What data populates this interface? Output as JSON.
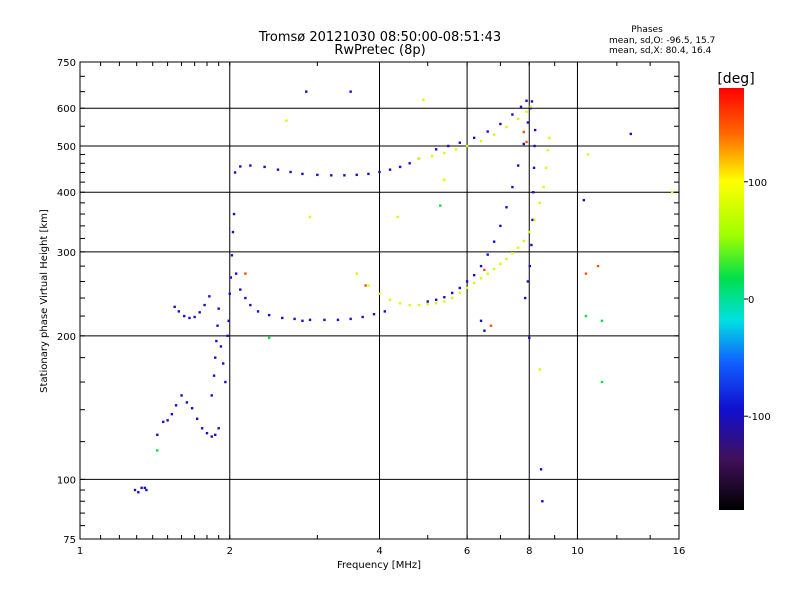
{
  "chart_data": {
    "type": "scatter",
    "title": "Tromsø 20121030 08:50:00-08:51:43",
    "subtitle": "RwPretec (8p)",
    "xlabel": "Frequency [MHz]",
    "ylabel": "Stationary phase Virtual Height [km]",
    "x_scale": "log",
    "y_scale": "log",
    "xlim": [
      1,
      16
    ],
    "ylim": [
      75,
      750
    ],
    "grid": true,
    "x_tick_labels": [
      {
        "value": 1,
        "label": "1"
      },
      {
        "value": 2,
        "label": "2"
      },
      {
        "value": 4,
        "label": "4"
      },
      {
        "value": 6,
        "label": "6"
      },
      {
        "value": 8,
        "label": "8"
      },
      {
        "value": 10,
        "label": "10"
      },
      {
        "value": 16,
        "label": "16"
      }
    ],
    "y_tick_labels": [
      {
        "value": 75,
        "label": "75"
      },
      {
        "value": 100,
        "label": "100"
      },
      {
        "value": 200,
        "label": "200"
      },
      {
        "value": 300,
        "label": "300"
      },
      {
        "value": 400,
        "label": "400"
      },
      {
        "value": 500,
        "label": "500"
      },
      {
        "value": 600,
        "label": "600"
      },
      {
        "value": 750,
        "label": "750"
      }
    ],
    "stats": {
      "heading": "Phases",
      "line_o": "mean, sd,O: -96.5, 15.7",
      "line_x": "mean, sd,X:  80.4, 16.4"
    },
    "colorbar": {
      "label": "[deg]",
      "range": [
        -180,
        180
      ],
      "ticks": [
        {
          "value": 100,
          "label": "100"
        },
        {
          "value": 0,
          "label": "0"
        },
        {
          "value": -100,
          "label": "-100"
        }
      ]
    },
    "series": [
      {
        "mode": "O",
        "phase_deg": -100,
        "points": [
          [
            1.29,
            95
          ],
          [
            1.31,
            94
          ],
          [
            1.33,
            96
          ],
          [
            1.35,
            96
          ],
          [
            1.36,
            95
          ],
          [
            1.43,
            124
          ],
          [
            1.47,
            132
          ],
          [
            1.5,
            133
          ],
          [
            1.53,
            137
          ],
          [
            1.56,
            143
          ],
          [
            1.6,
            150
          ],
          [
            1.64,
            145
          ],
          [
            1.68,
            141
          ],
          [
            1.72,
            134
          ],
          [
            1.76,
            128
          ],
          [
            1.8,
            125
          ],
          [
            1.84,
            123
          ],
          [
            1.87,
            124
          ],
          [
            1.9,
            128
          ],
          [
            1.55,
            230
          ],
          [
            1.58,
            225
          ],
          [
            1.62,
            220
          ],
          [
            1.66,
            218
          ],
          [
            1.7,
            219
          ],
          [
            1.74,
            224
          ],
          [
            1.78,
            232
          ],
          [
            1.82,
            242
          ],
          [
            1.84,
            150
          ],
          [
            1.86,
            165
          ],
          [
            1.87,
            180
          ],
          [
            1.88,
            195
          ],
          [
            1.89,
            210
          ],
          [
            1.9,
            228
          ],
          [
            1.92,
            190
          ],
          [
            1.94,
            175
          ],
          [
            1.96,
            160
          ],
          [
            1.98,
            200
          ],
          [
            1.99,
            215
          ],
          [
            2.0,
            245
          ],
          [
            2.01,
            265
          ],
          [
            2.02,
            295
          ],
          [
            2.03,
            330
          ],
          [
            2.04,
            360
          ],
          [
            2.06,
            270
          ],
          [
            2.1,
            250
          ],
          [
            2.15,
            240
          ],
          [
            2.2,
            232
          ],
          [
            2.28,
            225
          ],
          [
            2.4,
            221
          ],
          [
            2.55,
            218
          ],
          [
            2.7,
            217
          ],
          [
            2.9,
            216
          ],
          [
            3.1,
            216
          ],
          [
            3.3,
            216
          ],
          [
            3.5,
            217
          ],
          [
            3.7,
            219
          ],
          [
            3.9,
            222
          ],
          [
            4.1,
            225
          ],
          [
            2.05,
            440
          ],
          [
            2.1,
            453
          ],
          [
            2.2,
            455
          ],
          [
            2.35,
            452
          ],
          [
            2.5,
            446
          ],
          [
            2.65,
            441
          ],
          [
            2.8,
            437
          ],
          [
            3.0,
            435
          ],
          [
            3.2,
            434
          ],
          [
            3.4,
            434
          ],
          [
            3.6,
            435
          ],
          [
            3.8,
            437
          ],
          [
            4.0,
            441
          ],
          [
            4.2,
            446
          ],
          [
            4.4,
            452
          ],
          [
            4.6,
            460
          ],
          [
            4.8,
            470
          ],
          [
            5.0,
            236
          ],
          [
            5.2,
            238
          ],
          [
            5.4,
            241
          ],
          [
            5.6,
            246
          ],
          [
            5.8,
            252
          ],
          [
            6.0,
            260
          ],
          [
            6.2,
            268
          ],
          [
            6.4,
            280
          ],
          [
            6.6,
            296
          ],
          [
            6.8,
            315
          ],
          [
            7.0,
            340
          ],
          [
            7.2,
            372
          ],
          [
            7.4,
            410
          ],
          [
            7.6,
            455
          ],
          [
            7.8,
            505
          ],
          [
            7.95,
            560
          ],
          [
            8.05,
            600
          ],
          [
            8.1,
            620
          ],
          [
            5.2,
            492
          ],
          [
            5.5,
            500
          ],
          [
            5.8,
            508
          ],
          [
            6.2,
            520
          ],
          [
            6.6,
            536
          ],
          [
            7.0,
            556
          ],
          [
            7.4,
            582
          ],
          [
            7.7,
            604
          ],
          [
            7.9,
            622
          ],
          [
            7.85,
            240
          ],
          [
            7.95,
            260
          ],
          [
            8.02,
            280
          ],
          [
            8.08,
            310
          ],
          [
            8.12,
            350
          ],
          [
            8.15,
            400
          ],
          [
            8.18,
            450
          ],
          [
            8.2,
            500
          ],
          [
            8.22,
            540
          ],
          [
            2.85,
            650
          ],
          [
            3.5,
            650
          ],
          [
            8.45,
            105
          ],
          [
            8.5,
            90
          ],
          [
            12.8,
            530
          ],
          [
            10.3,
            385
          ],
          [
            2.8,
            215
          ],
          [
            6.4,
            215
          ],
          [
            8.0,
            198
          ],
          [
            6.5,
            205
          ]
        ]
      },
      {
        "mode": "X",
        "phase_deg": 80,
        "points": [
          [
            3.6,
            270
          ],
          [
            3.8,
            255
          ],
          [
            4.0,
            245
          ],
          [
            4.2,
            238
          ],
          [
            4.4,
            234
          ],
          [
            4.6,
            232
          ],
          [
            4.8,
            232
          ],
          [
            5.0,
            233
          ],
          [
            5.2,
            234
          ],
          [
            5.4,
            236
          ],
          [
            5.6,
            240
          ],
          [
            5.8,
            246
          ],
          [
            6.0,
            252
          ],
          [
            6.2,
            258
          ],
          [
            6.4,
            264
          ],
          [
            6.6,
            270
          ],
          [
            6.8,
            276
          ],
          [
            7.0,
            283
          ],
          [
            7.2,
            290
          ],
          [
            7.4,
            298
          ],
          [
            7.6,
            306
          ],
          [
            7.8,
            316
          ],
          [
            8.0,
            330
          ],
          [
            8.2,
            350
          ],
          [
            8.4,
            380
          ],
          [
            8.55,
            410
          ],
          [
            8.65,
            450
          ],
          [
            8.72,
            490
          ],
          [
            8.78,
            520
          ],
          [
            4.8,
            470
          ],
          [
            5.1,
            476
          ],
          [
            5.4,
            483
          ],
          [
            5.7,
            492
          ],
          [
            6.0,
            500
          ],
          [
            6.4,
            512
          ],
          [
            6.8,
            528
          ],
          [
            7.2,
            548
          ],
          [
            7.6,
            570
          ],
          [
            7.9,
            590
          ],
          [
            8.05,
            605
          ],
          [
            2.6,
            565
          ],
          [
            4.9,
            625
          ],
          [
            15.5,
            400
          ],
          [
            10.5,
            480
          ],
          [
            2.9,
            355
          ],
          [
            4.35,
            355
          ],
          [
            8.4,
            170
          ],
          [
            5.4,
            425
          ]
        ]
      },
      {
        "mode": "other",
        "phase_deg": 20,
        "points": [
          [
            1.43,
            115
          ],
          [
            2.4,
            198
          ],
          [
            5.3,
            375
          ],
          [
            10.4,
            220
          ],
          [
            11.2,
            215
          ],
          [
            11.2,
            160
          ]
        ]
      },
      {
        "mode": "other",
        "phase_deg": 150,
        "points": [
          [
            2.15,
            270
          ],
          [
            3.75,
            255
          ],
          [
            6.5,
            275
          ],
          [
            6.7,
            210
          ],
          [
            10.4,
            270
          ],
          [
            11.0,
            280
          ],
          [
            7.8,
            535
          ],
          [
            7.9,
            510
          ]
        ]
      }
    ]
  }
}
